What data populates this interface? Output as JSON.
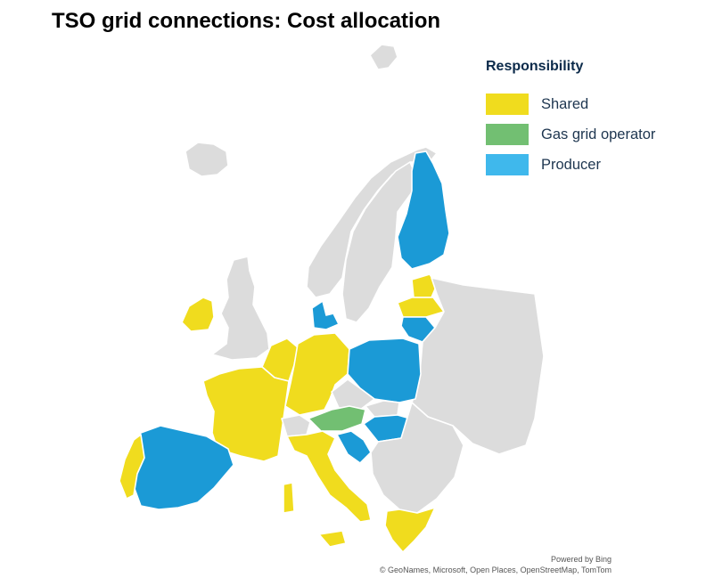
{
  "title": "TSO grid connections: Cost allocation",
  "legend": {
    "title": "Responsibility",
    "items": [
      {
        "key": "shared",
        "label": "Shared",
        "color": "#f0dc1e"
      },
      {
        "key": "gas",
        "label": "Gas grid operator",
        "color": "#72bf72"
      },
      {
        "key": "producer",
        "label": "Producer",
        "color": "#3fb8ec"
      }
    ]
  },
  "colors": {
    "shared": "#f0dc1e",
    "gas": "#72bf72",
    "producer": "#1b9ad6",
    "nodata": "#dcdcdc"
  },
  "credits": {
    "powered": "Powered by Bing",
    "sources": "© GeoNames, Microsoft, Open Places, OpenStreetMap, TomTom"
  }
}
